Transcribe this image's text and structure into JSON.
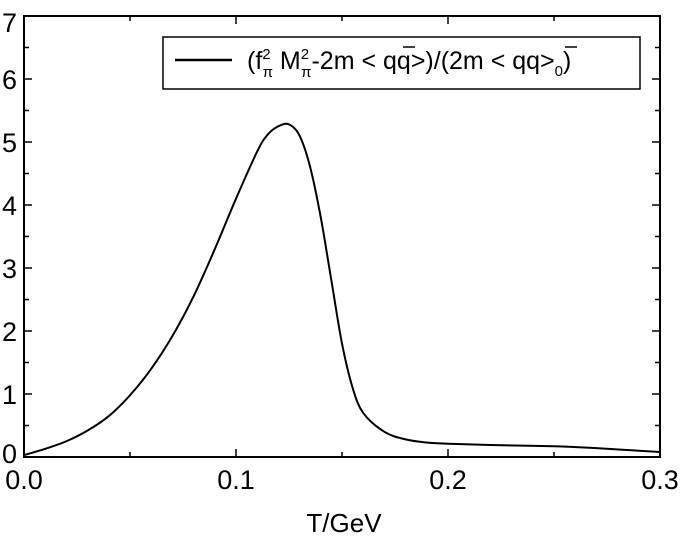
{
  "chart_data": {
    "type": "line",
    "xlabel": "T/GeV",
    "ylabel": "",
    "xlim": [
      0.0,
      0.3
    ],
    "ylim": [
      0,
      7
    ],
    "x_ticks": [
      "0.0",
      "0.1",
      "0.2",
      "0.3"
    ],
    "y_ticks": [
      "0",
      "1",
      "2",
      "3",
      "4",
      "5",
      "6",
      "7"
    ],
    "grid": false,
    "legend_position": "top-right",
    "legend": {
      "p1": "(f",
      "p2": "2",
      "p3": "π",
      "p4": " M",
      "p5": "2",
      "p6": "π",
      "p7": "-2m < ",
      "p8": "qq>)/(2m < ",
      "p9": "qq>",
      "p10": "0",
      "p11": ")"
    },
    "series": [
      {
        "color": "#000000",
        "x": [
          0.0,
          0.01,
          0.02,
          0.03,
          0.04,
          0.05,
          0.06,
          0.07,
          0.08,
          0.09,
          0.1,
          0.11,
          0.115,
          0.12,
          0.125,
          0.13,
          0.135,
          0.14,
          0.145,
          0.15,
          0.155,
          0.16,
          0.17,
          0.18,
          0.19,
          0.2,
          0.22,
          0.25,
          0.27,
          0.3
        ],
        "y": [
          0.03,
          0.13,
          0.25,
          0.42,
          0.65,
          0.98,
          1.4,
          1.92,
          2.55,
          3.3,
          4.1,
          4.85,
          5.12,
          5.25,
          5.28,
          5.1,
          4.6,
          3.8,
          2.8,
          1.8,
          1.1,
          0.7,
          0.4,
          0.28,
          0.23,
          0.21,
          0.19,
          0.17,
          0.14,
          0.08
        ]
      }
    ]
  }
}
